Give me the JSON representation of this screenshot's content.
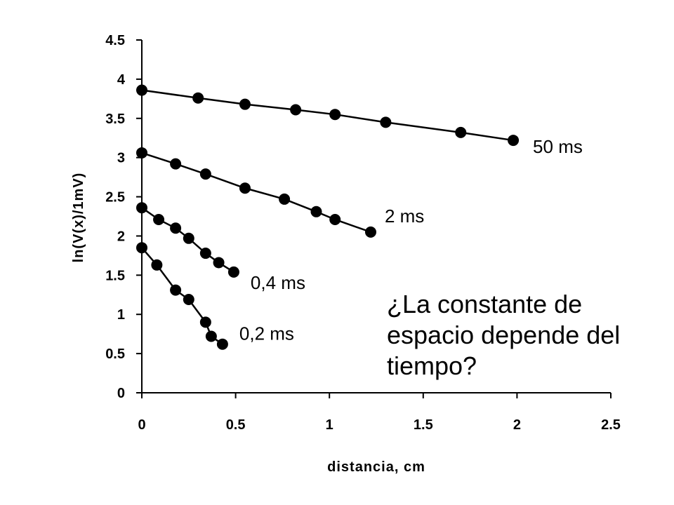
{
  "question": {
    "line1": "¿La constante de",
    "line2": "espacio depende del",
    "line3": "tiempo?"
  },
  "chart_data": {
    "type": "scatter",
    "xlabel": "distancia, cm",
    "ylabel": "ln(V(x)/1mV)",
    "xlim": [
      0,
      2.5
    ],
    "ylim": [
      0,
      4.5
    ],
    "x_ticks": [
      "0",
      "0.5",
      "1",
      "1.5",
      "2",
      "2.5"
    ],
    "y_ticks": [
      "0",
      "0.5",
      "1",
      "1.5",
      "2",
      "2.5",
      "3",
      "3.5",
      "4",
      "4.5"
    ],
    "grid": false,
    "legend": "none",
    "series": [
      {
        "name": "50 ms",
        "x": [
          0,
          0.3,
          0.55,
          0.82,
          1.03,
          1.3,
          1.7,
          1.98
        ],
        "y": [
          3.86,
          3.76,
          3.68,
          3.61,
          3.55,
          3.45,
          3.32,
          3.22
        ]
      },
      {
        "name": "2 ms",
        "x": [
          0,
          0.18,
          0.34,
          0.55,
          0.76,
          0.93,
          1.03,
          1.22
        ],
        "y": [
          3.06,
          2.92,
          2.79,
          2.61,
          2.47,
          2.31,
          2.21,
          2.05
        ]
      },
      {
        "name": "0,4 ms",
        "x": [
          0,
          0.09,
          0.18,
          0.25,
          0.34,
          0.41,
          0.49
        ],
        "y": [
          2.36,
          2.21,
          2.1,
          1.97,
          1.78,
          1.66,
          1.54
        ]
      },
      {
        "name": "0,2 ms",
        "x": [
          0,
          0.08,
          0.18,
          0.25,
          0.34,
          0.37,
          0.43
        ],
        "y": [
          1.85,
          1.63,
          1.31,
          1.19,
          0.9,
          0.72,
          0.62
        ]
      }
    ]
  }
}
